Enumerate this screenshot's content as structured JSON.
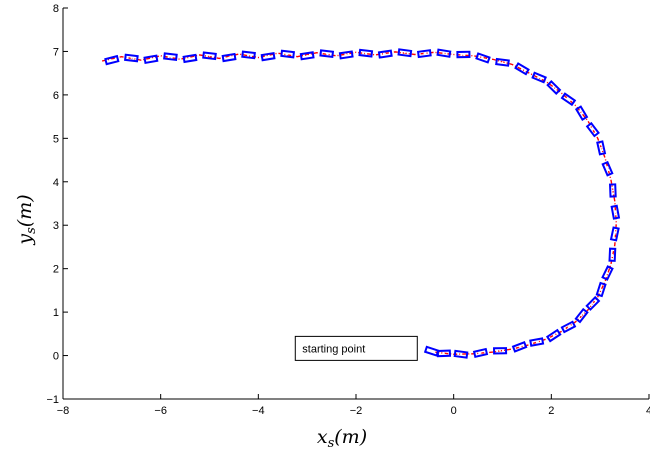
{
  "chart_data": {
    "type": "scatter",
    "title": "",
    "xlabel": {
      "base": "x",
      "sub": "s",
      "unit": "(m)"
    },
    "ylabel": {
      "base": "y",
      "sub": "s",
      "unit": "(m)"
    },
    "xlim": [
      -8,
      4
    ],
    "ylim": [
      -1,
      8
    ],
    "xticks": [
      -8,
      -6,
      -4,
      -2,
      0,
      2,
      4
    ],
    "yticks": [
      -1,
      0,
      1,
      2,
      3,
      4,
      5,
      6,
      7,
      8
    ],
    "grid": false,
    "colors": {
      "trajectory": "#ff0000",
      "vehicle": "#0000ff",
      "marker": "#ffffff"
    },
    "annotation": {
      "text": "starting point",
      "x": -3.1,
      "y": 0.05
    },
    "trajectory": {
      "x": [
        -7.2,
        -6.8,
        -6.4,
        -6.0,
        -5.6,
        -5.2,
        -4.8,
        -4.4,
        -4.0,
        -3.6,
        -3.2,
        -2.8,
        -2.4,
        -2.0,
        -1.6,
        -1.2,
        -0.8,
        -0.4,
        0.0,
        0.4,
        0.8,
        1.2,
        1.55,
        1.9,
        2.2,
        2.5,
        2.75,
        2.95,
        3.1,
        3.22,
        3.3,
        3.33,
        3.3,
        3.22,
        3.1,
        2.95,
        2.75,
        2.5,
        2.2,
        1.9,
        1.55,
        1.2,
        0.8,
        0.4,
        0.0,
        -0.4
      ],
      "y": [
        6.78,
        6.88,
        6.8,
        6.9,
        6.82,
        6.92,
        6.84,
        6.94,
        6.86,
        6.96,
        6.88,
        6.97,
        6.9,
        6.98,
        6.92,
        6.99,
        6.93,
        6.98,
        6.93,
        6.9,
        6.82,
        6.7,
        6.5,
        6.3,
        6.05,
        5.75,
        5.4,
        5.0,
        4.55,
        4.05,
        3.55,
        3.05,
        2.55,
        2.1,
        1.7,
        1.35,
        1.05,
        0.78,
        0.55,
        0.38,
        0.25,
        0.15,
        0.08,
        0.04,
        0.03,
        0.08
      ]
    },
    "vehicles": {
      "x": [
        -7.0,
        -6.6,
        -6.2,
        -5.8,
        -5.4,
        -5.0,
        -4.6,
        -4.2,
        -3.8,
        -3.4,
        -3.0,
        -2.6,
        -2.2,
        -1.8,
        -1.4,
        -1.0,
        -0.6,
        -0.2,
        0.2,
        0.6,
        1.0,
        1.4,
        1.75,
        2.05,
        2.35,
        2.62,
        2.85,
        3.02,
        3.15,
        3.26,
        3.31,
        3.3,
        3.25,
        3.15,
        3.02,
        2.85,
        2.62,
        2.35,
        2.05,
        1.7,
        1.35,
        0.95,
        0.55,
        0.15,
        -0.2,
        -0.45
      ],
      "y": [
        6.8,
        6.85,
        6.82,
        6.88,
        6.84,
        6.9,
        6.86,
        6.92,
        6.88,
        6.94,
        6.9,
        6.95,
        6.92,
        6.96,
        6.94,
        6.97,
        6.95,
        6.96,
        6.93,
        6.85,
        6.75,
        6.6,
        6.4,
        6.17,
        5.9,
        5.58,
        5.2,
        4.78,
        4.3,
        3.8,
        3.3,
        2.8,
        2.32,
        1.9,
        1.52,
        1.2,
        0.92,
        0.66,
        0.46,
        0.31,
        0.2,
        0.11,
        0.06,
        0.03,
        0.05,
        0.1
      ]
    }
  }
}
